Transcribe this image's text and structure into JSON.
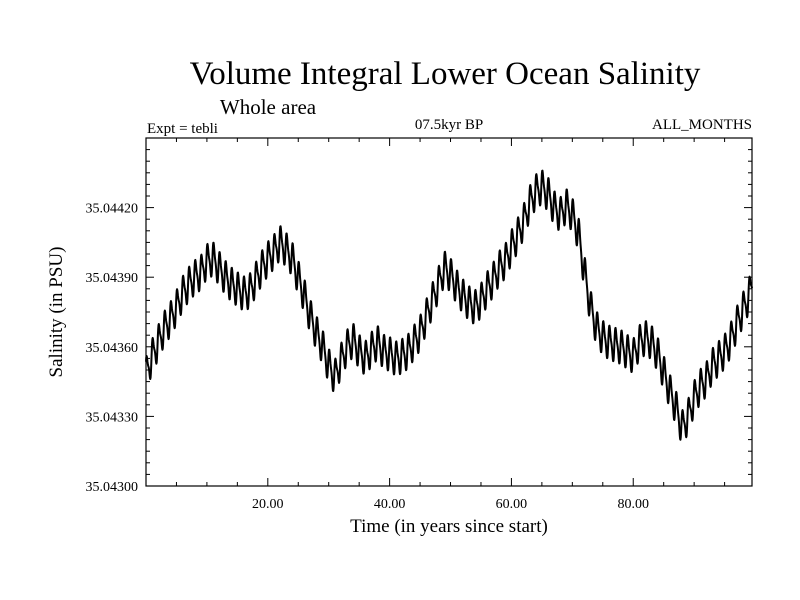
{
  "chart_data": {
    "type": "line",
    "title": "Volume Integral Lower Ocean Salinity",
    "subtitle": "Whole area",
    "experiment": "Expt = tebli",
    "period": "07.5kyr BP",
    "season": "ALL_MONTHS",
    "xlabel": "Time (in years since start)",
    "ylabel": "Salinity (in PSU)",
    "xlim": [
      0,
      99.5
    ],
    "ylim": [
      35.043,
      35.0445
    ],
    "xticks": [
      20,
      40,
      60,
      80
    ],
    "xtick_labels": [
      "20.00",
      "40.00",
      "60.00",
      "80.00"
    ],
    "yticks": [
      35.043,
      35.0433,
      35.0436,
      35.0439,
      35.0442
    ],
    "ytick_labels": [
      "35.04300",
      "35.04330",
      "35.04360",
      "35.04390",
      "35.04420"
    ],
    "grid": false,
    "series": [
      {
        "name": "salinity",
        "color": "#000000",
        "x": [
          0,
          1,
          2,
          3,
          4,
          5,
          6,
          7,
          8,
          9,
          10,
          11,
          12,
          13,
          14,
          15,
          16,
          17,
          18,
          19,
          20,
          21,
          22,
          23,
          24,
          25,
          26,
          27,
          28,
          29,
          30,
          31,
          32,
          33,
          34,
          35,
          36,
          37,
          38,
          39,
          40,
          41,
          42,
          43,
          44,
          45,
          46,
          47,
          48,
          49,
          50,
          51,
          52,
          53,
          54,
          55,
          56,
          57,
          58,
          59,
          60,
          61,
          62,
          63,
          64,
          65,
          66,
          67,
          68,
          69,
          70,
          71,
          72,
          73,
          74,
          75,
          76,
          77,
          78,
          79,
          80,
          81,
          82,
          83,
          84,
          85,
          86,
          87,
          88,
          89,
          90,
          91,
          92,
          93,
          94,
          95,
          96,
          97,
          98,
          99,
          99.5
        ],
        "values": [
          35.04348,
          35.04356,
          35.04362,
          35.04368,
          35.04372,
          35.04377,
          35.04383,
          35.04387,
          35.0439,
          35.04392,
          35.04397,
          35.04398,
          35.04394,
          35.0439,
          35.04387,
          35.04385,
          35.04383,
          35.04384,
          35.04389,
          35.04394,
          35.04398,
          35.04401,
          35.04405,
          35.04402,
          35.04398,
          35.0439,
          35.04382,
          35.04373,
          35.04366,
          35.0436,
          35.04352,
          35.04347,
          35.04354,
          35.0436,
          35.04363,
          35.04358,
          35.04355,
          35.04359,
          35.04362,
          35.04358,
          35.04357,
          35.04355,
          35.04356,
          35.04358,
          35.04362,
          35.04366,
          35.04373,
          35.0438,
          35.04387,
          35.04394,
          35.04391,
          35.04386,
          35.04382,
          35.04379,
          35.04377,
          35.0438,
          35.04385,
          35.04389,
          35.04394,
          35.04397,
          35.04403,
          35.04408,
          35.04414,
          35.04422,
          35.04427,
          35.04429,
          35.04426,
          35.0442,
          35.04417,
          35.04421,
          35.04417,
          35.04409,
          35.04392,
          35.04377,
          35.04368,
          35.04364,
          35.04362,
          35.04361,
          35.0436,
          35.04358,
          35.04356,
          35.04362,
          35.04364,
          35.04362,
          35.04357,
          35.04349,
          35.04341,
          35.04334,
          35.04325,
          35.0433,
          35.04338,
          35.04343,
          35.04346,
          35.04352,
          35.04355,
          35.04358,
          35.04363,
          35.0437,
          35.04376,
          35.04382,
          35.04387
        ]
      }
    ]
  }
}
